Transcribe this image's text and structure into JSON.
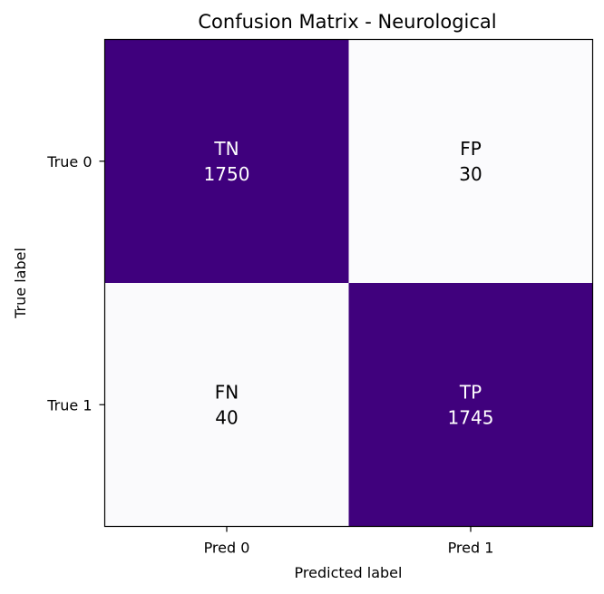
{
  "chart_data": {
    "type": "heatmap",
    "title": "Confusion Matrix - Neurological",
    "xlabel": "Predicted label",
    "ylabel": "True label",
    "x_ticklabels": [
      "Pred 0",
      "Pred 1"
    ],
    "y_ticklabels": [
      "True 0",
      "True 1"
    ],
    "cells": [
      [
        {
          "label": "TN",
          "value": 1750
        },
        {
          "label": "FP",
          "value": 30
        }
      ],
      [
        {
          "label": "FN",
          "value": 40
        },
        {
          "label": "TP",
          "value": 1745
        }
      ]
    ],
    "colormap": {
      "low": "#fbfbfd",
      "high": "#3f007d"
    },
    "text_colors": {
      "on_dark": "#ffffff",
      "on_light": "#000000"
    }
  }
}
